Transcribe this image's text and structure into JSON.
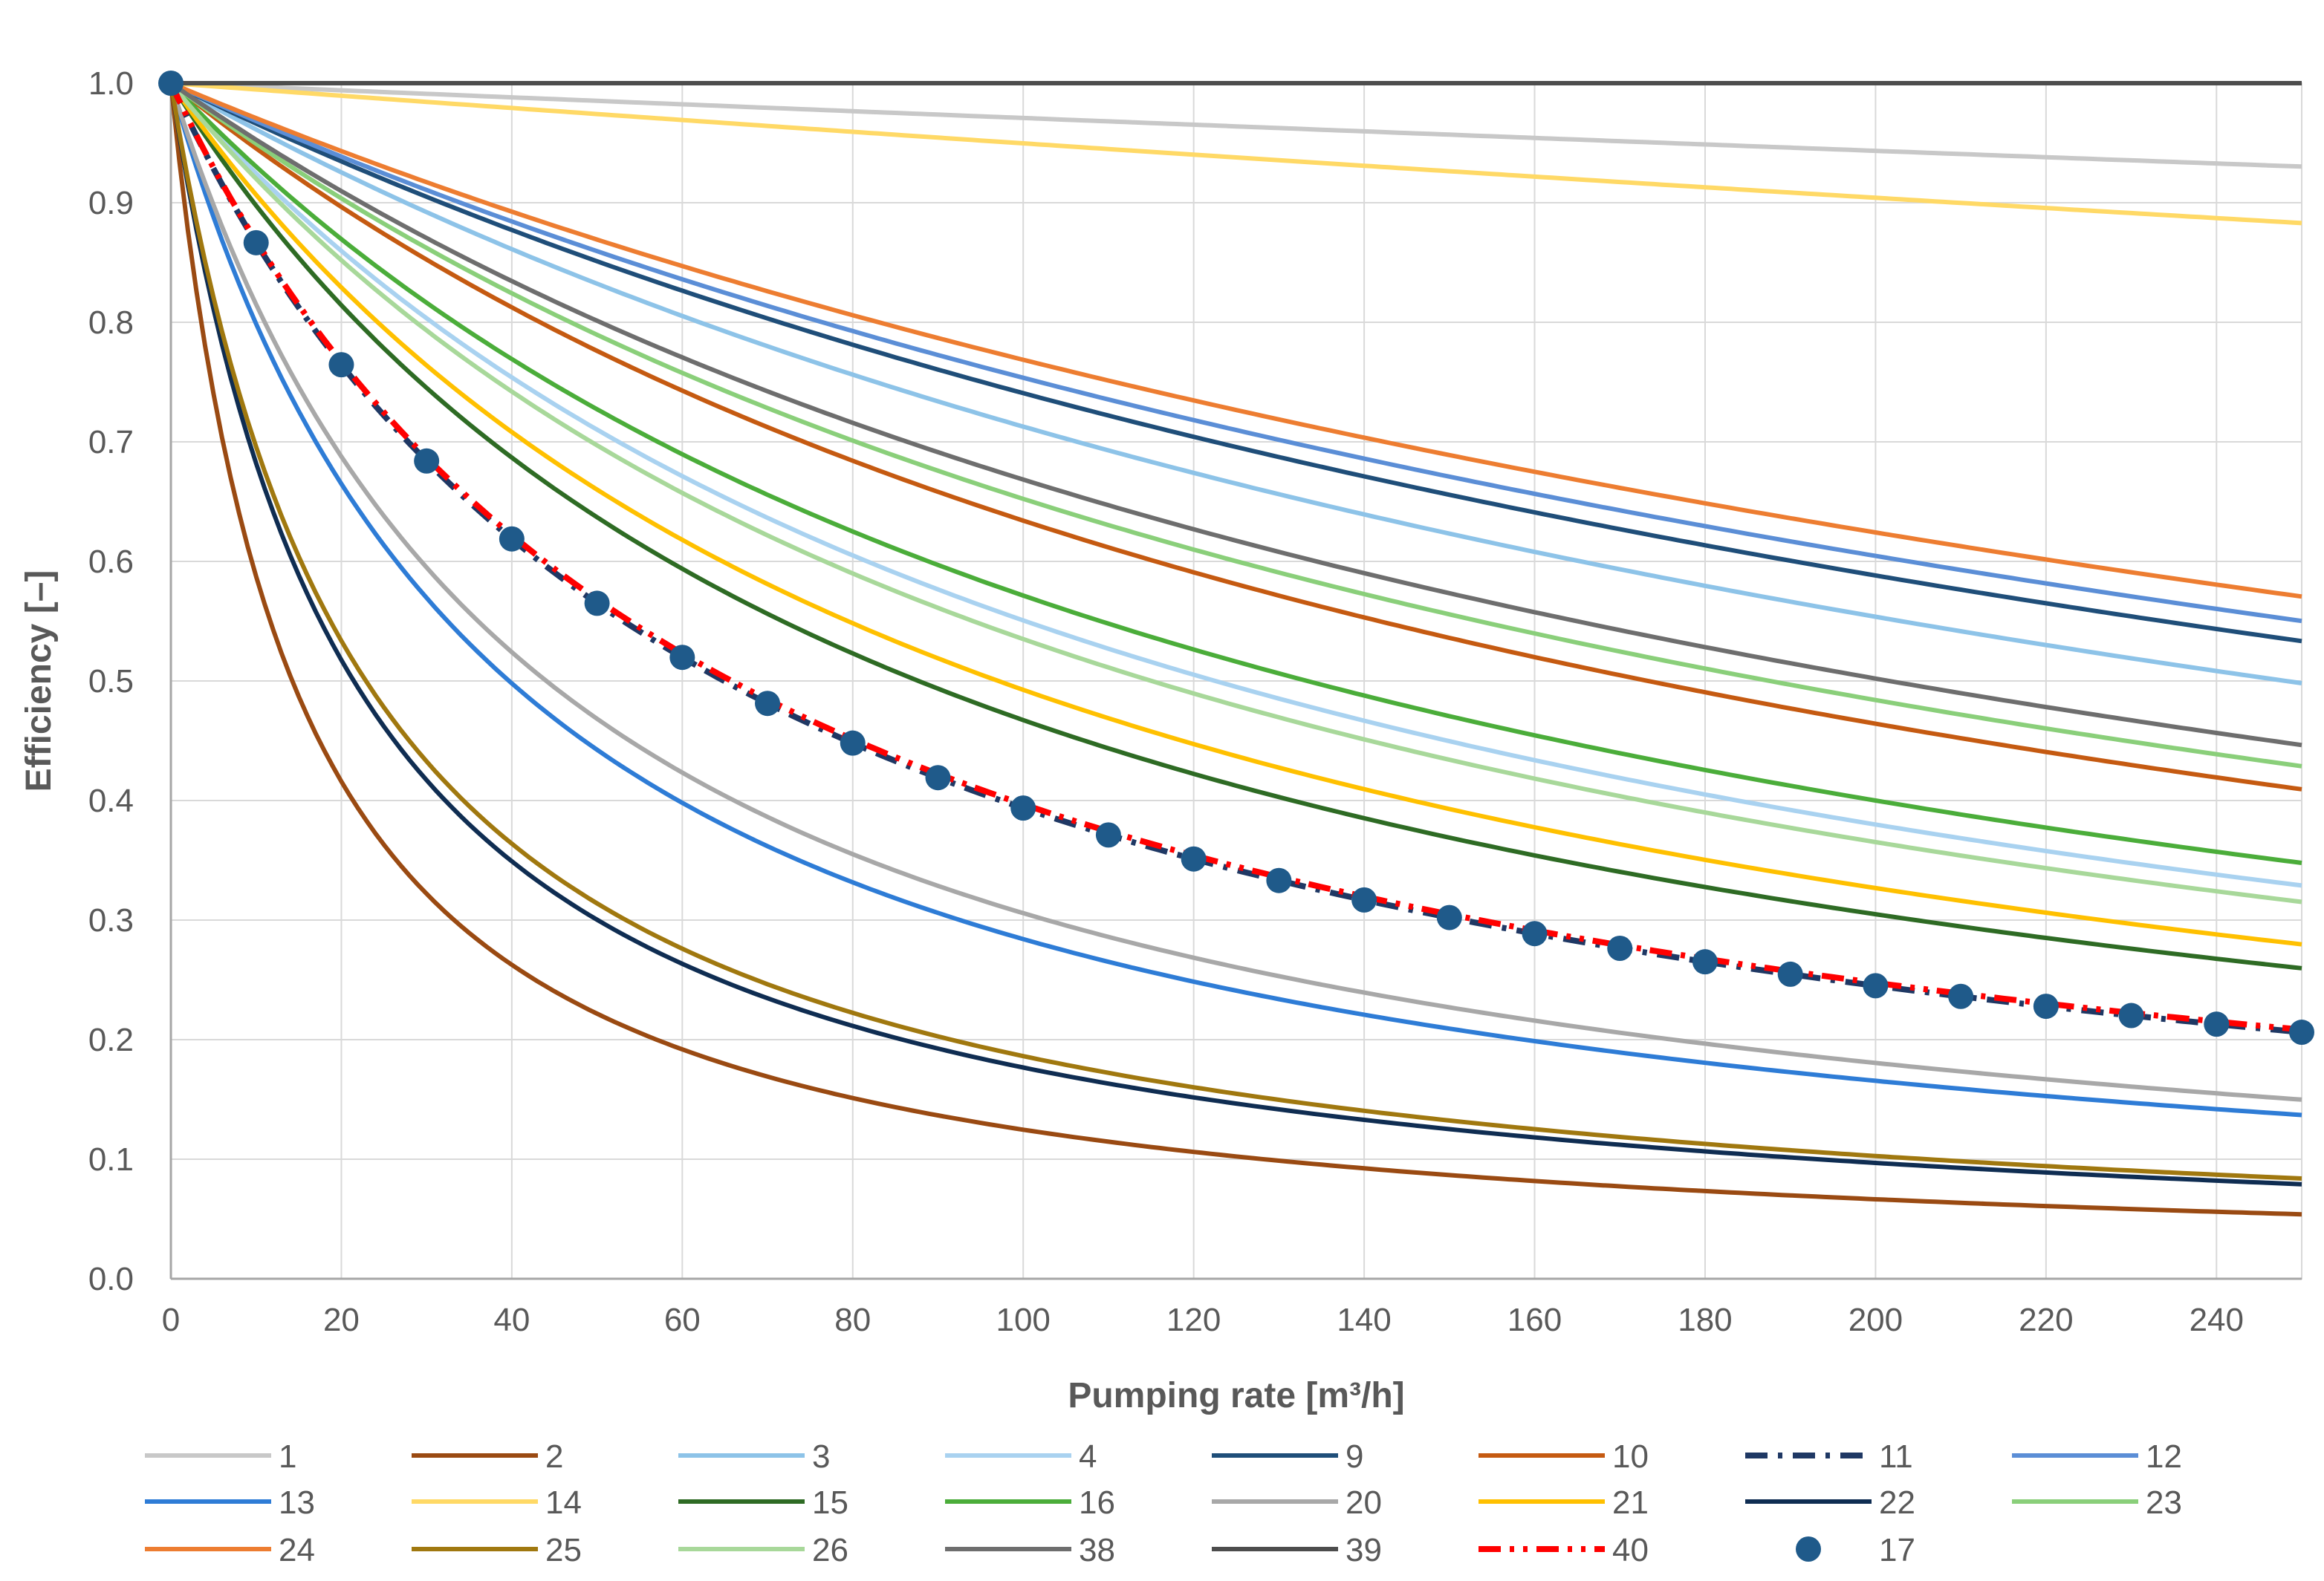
{
  "chart_data": {
    "type": "line",
    "title": "",
    "xlabel": "Pumping rate [m³/h]",
    "ylabel": "Efficiency [–]",
    "xlim": [
      0,
      250
    ],
    "ylim": [
      0,
      1.0
    ],
    "xticks": [
      0,
      20,
      40,
      60,
      80,
      100,
      120,
      140,
      160,
      180,
      200,
      220,
      240
    ],
    "yticks": [
      0.0,
      0.1,
      0.2,
      0.3,
      0.4,
      0.5,
      0.6,
      0.7,
      0.8,
      0.9,
      1.0
    ],
    "ytick_labels": [
      "0.0",
      "0.1",
      "0.2",
      "0.3",
      "0.4",
      "0.5",
      "0.6",
      "0.7",
      "0.8",
      "0.9",
      "1.0"
    ],
    "grid": true,
    "legend_position": "bottom",
    "curve_model": "efficiency = 1 / (1 + k * Q), k estimated from each curve's value at Q = 250",
    "x": [
      0,
      10,
      20,
      30,
      40,
      50,
      60,
      70,
      80,
      90,
      100,
      110,
      120,
      130,
      140,
      150,
      160,
      170,
      180,
      190,
      200,
      210,
      220,
      230,
      240,
      250
    ],
    "series": [
      {
        "name": "1",
        "color": "#C8C8C8",
        "dash": "solid",
        "k": 0.0003,
        "value_at_250": 0.93
      },
      {
        "name": "2",
        "color": "#9A4A12",
        "dash": "solid",
        "k": 0.0702,
        "value_at_250": 0.054
      },
      {
        "name": "3",
        "color": "#8DC3E8",
        "dash": "solid",
        "k": 0.00403,
        "value_at_250": 0.498
      },
      {
        "name": "4",
        "color": "#A9D2F0",
        "dash": "solid",
        "k": 0.00816,
        "value_at_250": 0.329
      },
      {
        "name": "9",
        "color": "#1F4E79",
        "dash": "solid",
        "k": 0.0035,
        "value_at_250": 0.534
      },
      {
        "name": "10",
        "color": "#C55A11",
        "dash": "solid",
        "k": 0.00577,
        "value_at_250": 0.409
      },
      {
        "name": "11",
        "color": "#1F3864",
        "dash": "dashdot",
        "k": 0.0154,
        "value_at_250": 0.206
      },
      {
        "name": "12",
        "color": "#5B8ED6",
        "dash": "solid",
        "k": 0.00327,
        "value_at_250": 0.55
      },
      {
        "name": "13",
        "color": "#2E7CD6",
        "dash": "solid",
        "k": 0.0252,
        "value_at_250": 0.137
      },
      {
        "name": "14",
        "color": "#FFD966",
        "dash": "solid",
        "k": 0.00053,
        "value_at_250": 0.883
      },
      {
        "name": "15",
        "color": "#2E6B24",
        "dash": "solid",
        "k": 0.0114,
        "value_at_250": 0.259
      },
      {
        "name": "16",
        "color": "#4BAD3A",
        "dash": "solid",
        "k": 0.0075,
        "value_at_250": 0.348
      },
      {
        "name": "20",
        "color": "#A8A8A8",
        "dash": "solid",
        "k": 0.0227,
        "value_at_250": 0.149
      },
      {
        "name": "21",
        "color": "#FFC000",
        "dash": "solid",
        "k": 0.0103,
        "value_at_250": 0.279
      },
      {
        "name": "22",
        "color": "#0F2D52",
        "dash": "solid",
        "k": 0.0466,
        "value_at_250": 0.079
      },
      {
        "name": "23",
        "color": "#8ACF7A",
        "dash": "solid",
        "k": 0.00533,
        "value_at_250": 0.429
      },
      {
        "name": "24",
        "color": "#ED7D31",
        "dash": "solid",
        "k": 0.00301,
        "value_at_250": 0.571
      },
      {
        "name": "25",
        "color": "#A0780F",
        "dash": "solid",
        "k": 0.0437,
        "value_at_250": 0.084
      },
      {
        "name": "26",
        "color": "#A8D89A",
        "dash": "solid",
        "k": 0.00869,
        "value_at_250": 0.315
      },
      {
        "name": "38",
        "color": "#6E6E6E",
        "dash": "solid",
        "k": 0.00496,
        "value_at_250": 0.446
      },
      {
        "name": "39",
        "color": "#4D4D4D",
        "dash": "solid",
        "k": 0.0,
        "value_at_250": 1.0
      },
      {
        "name": "40",
        "color": "#FF0000",
        "dash": "dashdotdot",
        "k": 0.0152,
        "value_at_250": 0.208
      },
      {
        "name": "17",
        "color": "#1F5A8A",
        "dash": "markers",
        "k": 0.0154,
        "value_at_250": 0.205
      }
    ]
  }
}
